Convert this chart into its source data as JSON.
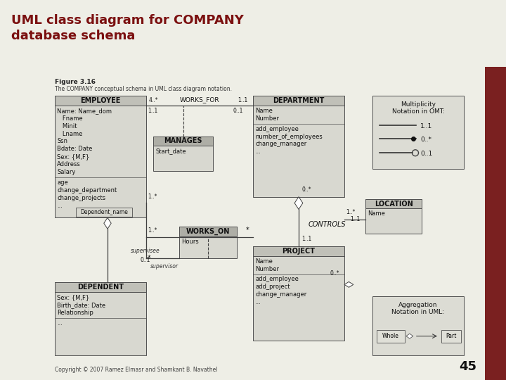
{
  "title": "UML class diagram for COMPANY\ndatabase schema",
  "title_color": "#7B1010",
  "title_bg": "#C8C8B4",
  "main_bg": "#EEEEE6",
  "figure_label": "Figure 3.16",
  "figure_caption": "The COMPANY conceptual schema in UML class diagram notation.",
  "copyright": "Copyright © 2007 Ramez Elmasr and Shamkant B. Navathel",
  "page_num": "45",
  "box_fill": "#D8D8D0",
  "box_header_fill": "#C0C0B8",
  "box_border": "#505050",
  "legend_bg": "#DCDCD4",
  "accent_bar_color": "#7A2020",
  "line_color": "#404040"
}
